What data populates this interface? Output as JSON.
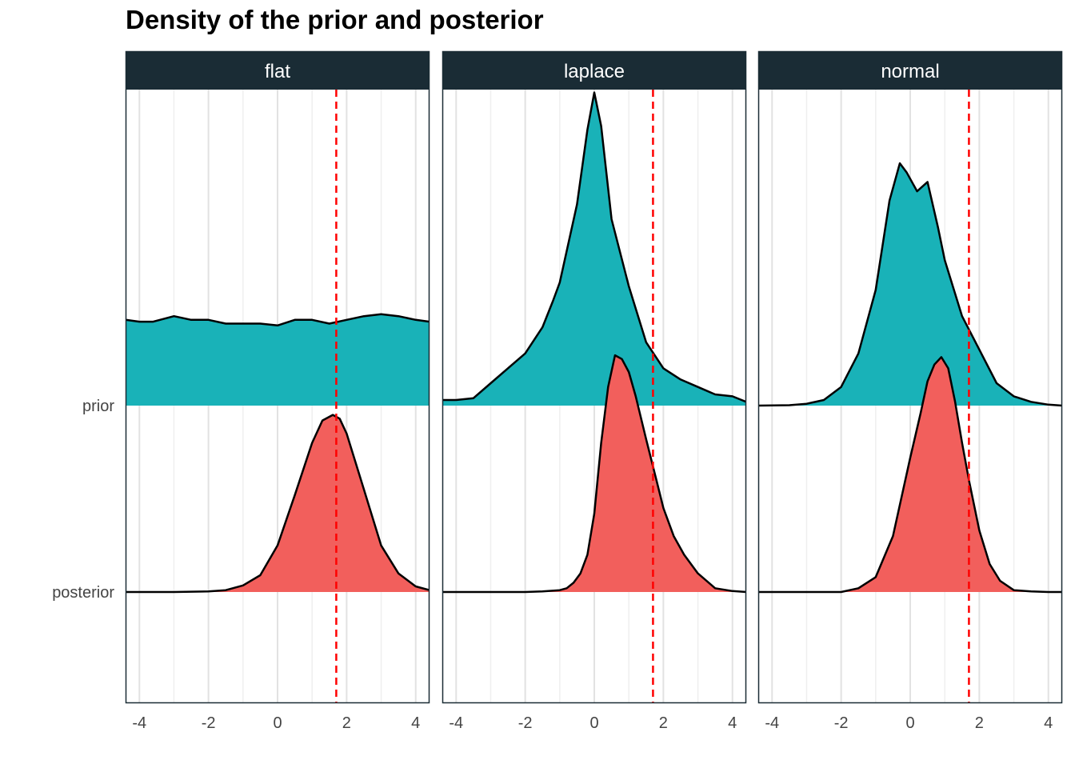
{
  "title": "Density of the prior and posterior",
  "chart_data": {
    "type": "area",
    "title": "Density of the prior and posterior",
    "xlabel": "",
    "ylabel": "",
    "xlim": [
      -4.4,
      4.4
    ],
    "x_ticks": [
      -4,
      -2,
      0,
      2,
      4
    ],
    "x_tick_labels": [
      "-4",
      "-2",
      "0",
      "2",
      "4"
    ],
    "y_categories": [
      "prior",
      "posterior"
    ],
    "grid": true,
    "reference_line": {
      "x": 1.7,
      "color": "#ff0000",
      "style": "dashed"
    },
    "colors": {
      "prior": "#19b2b8",
      "posterior": "#f25f5c",
      "strip_bg": "#1a2c35",
      "outline": "#000000"
    },
    "panels": [
      {
        "name": "flat",
        "series": [
          {
            "category": "prior",
            "x": [
              -4.4,
              -4,
              -3.6,
              -3,
              -2.5,
              -2,
              -1.5,
              -1,
              -0.5,
              0,
              0.5,
              1,
              1.5,
              2,
              2.5,
              3,
              3.5,
              4,
              4.4
            ],
            "y": [
              0.46,
              0.45,
              0.45,
              0.48,
              0.46,
              0.46,
              0.44,
              0.44,
              0.44,
              0.43,
              0.46,
              0.46,
              0.44,
              0.46,
              0.48,
              0.49,
              0.48,
              0.46,
              0.45
            ]
          },
          {
            "category": "posterior",
            "x": [
              -4.4,
              -3,
              -2,
              -1.5,
              -1,
              -0.5,
              0,
              0.5,
              1,
              1.3,
              1.6,
              1.8,
              2,
              2.5,
              3,
              3.5,
              4,
              4.4
            ],
            "y": [
              0,
              0,
              0.003,
              0.01,
              0.035,
              0.09,
              0.25,
              0.52,
              0.8,
              0.92,
              0.95,
              0.93,
              0.85,
              0.55,
              0.25,
              0.1,
              0.03,
              0.01
            ]
          }
        ]
      },
      {
        "name": "laplace",
        "series": [
          {
            "category": "prior",
            "x": [
              -4.4,
              -4,
              -3.5,
              -3,
              -2.5,
              -2,
              -1.5,
              -1.2,
              -1,
              -0.5,
              -0.2,
              0,
              0.2,
              0.5,
              1,
              1.5,
              2,
              2.5,
              3,
              3.5,
              4,
              4.4
            ],
            "y": [
              0.03,
              0.03,
              0.04,
              0.12,
              0.2,
              0.28,
              0.42,
              0.56,
              0.66,
              1.08,
              1.48,
              1.68,
              1.5,
              1.0,
              0.64,
              0.34,
              0.2,
              0.14,
              0.1,
              0.06,
              0.05,
              0.02
            ]
          },
          {
            "category": "posterior",
            "x": [
              -4.4,
              -2,
              -1.5,
              -1,
              -0.8,
              -0.6,
              -0.4,
              -0.2,
              0,
              0.2,
              0.4,
              0.6,
              0.8,
              1,
              1.2,
              1.5,
              1.8,
              2,
              2.3,
              2.6,
              3,
              3.5,
              4,
              4.4
            ],
            "y": [
              0,
              0,
              0.003,
              0.01,
              0.02,
              0.05,
              0.1,
              0.2,
              0.42,
              0.8,
              1.1,
              1.27,
              1.25,
              1.18,
              1.05,
              0.82,
              0.6,
              0.45,
              0.3,
              0.2,
              0.1,
              0.02,
              0.005,
              0
            ]
          }
        ]
      },
      {
        "name": "normal",
        "series": [
          {
            "category": "prior",
            "x": [
              -4.4,
              -3.5,
              -3,
              -2.5,
              -2,
              -1.5,
              -1,
              -0.6,
              -0.3,
              -0.1,
              0.2,
              0.5,
              0.8,
              1,
              1.5,
              2,
              2.5,
              3,
              3.5,
              4,
              4.4
            ],
            "y": [
              0,
              0.002,
              0.01,
              0.03,
              0.1,
              0.28,
              0.62,
              1.1,
              1.3,
              1.25,
              1.15,
              1.2,
              0.96,
              0.78,
              0.48,
              0.3,
              0.12,
              0.05,
              0.02,
              0.005,
              0
            ]
          },
          {
            "category": "posterior",
            "x": [
              -4.4,
              -2,
              -1.5,
              -1,
              -0.5,
              0,
              0.3,
              0.5,
              0.7,
              0.9,
              1.1,
              1.3,
              1.5,
              1.7,
              2,
              2.3,
              2.6,
              3,
              3.5,
              4,
              4.4
            ],
            "y": [
              0,
              0,
              0.02,
              0.08,
              0.3,
              0.72,
              0.96,
              1.13,
              1.22,
              1.26,
              1.2,
              1.02,
              0.8,
              0.6,
              0.33,
              0.15,
              0.06,
              0.01,
              0.003,
              0,
              0
            ]
          }
        ]
      }
    ]
  }
}
